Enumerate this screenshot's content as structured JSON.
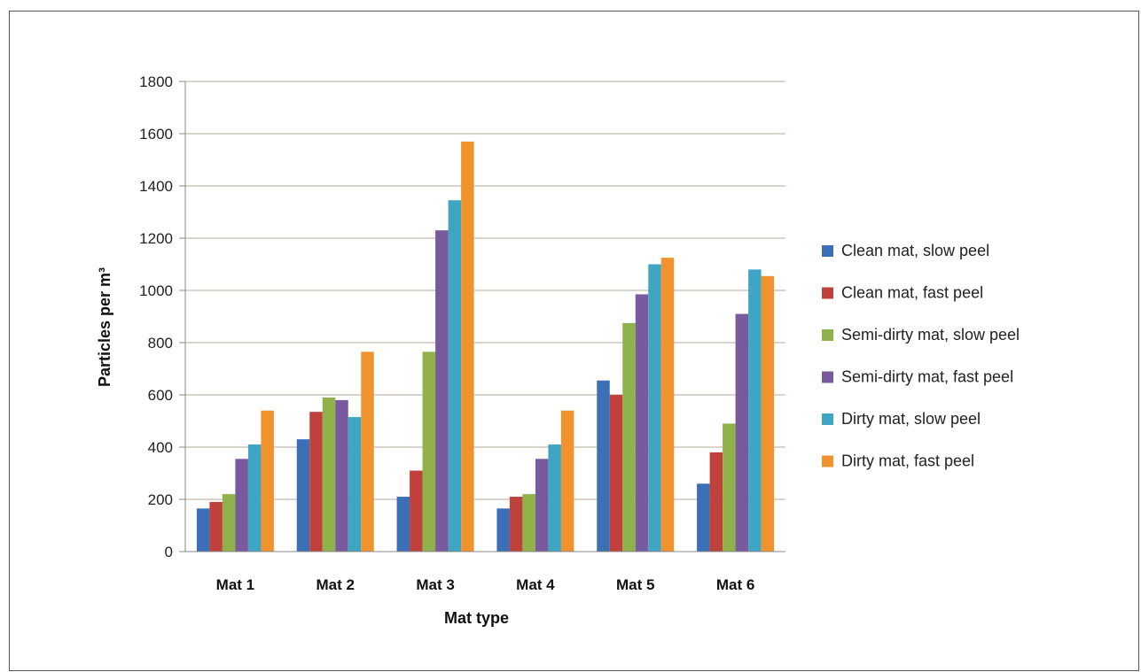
{
  "chart_data": {
    "type": "bar",
    "title": "",
    "xlabel": "Mat type",
    "ylabel": "Particles per m³",
    "ylim": [
      0,
      1800
    ],
    "yticks": [
      0,
      200,
      400,
      600,
      800,
      1000,
      1200,
      1400,
      1600,
      1800
    ],
    "grid": true,
    "legend_position": "right",
    "categories": [
      "Mat 1",
      "Mat 2",
      "Mat 3",
      "Mat 4",
      "Mat 5",
      "Mat 6"
    ],
    "series": [
      {
        "name": "Clean mat, slow peel",
        "color": "#3b6fb6",
        "values": [
          165,
          430,
          210,
          165,
          655,
          260
        ]
      },
      {
        "name": "Clean mat, fast peel",
        "color": "#c0403c",
        "values": [
          190,
          535,
          310,
          210,
          600,
          380
        ]
      },
      {
        "name": "Semi-dirty mat, slow peel",
        "color": "#8fb24a",
        "values": [
          220,
          590,
          765,
          220,
          875,
          490
        ]
      },
      {
        "name": "Semi-dirty mat, fast peel",
        "color": "#7a5a9e",
        "values": [
          355,
          580,
          1230,
          355,
          985,
          910
        ]
      },
      {
        "name": "Dirty mat, slow peel",
        "color": "#3ea5c2",
        "values": [
          410,
          515,
          1345,
          410,
          1100,
          1080
        ]
      },
      {
        "name": "Dirty mat, fast peel",
        "color": "#f0922e",
        "values": [
          540,
          765,
          1570,
          540,
          1125,
          1055
        ]
      }
    ]
  }
}
